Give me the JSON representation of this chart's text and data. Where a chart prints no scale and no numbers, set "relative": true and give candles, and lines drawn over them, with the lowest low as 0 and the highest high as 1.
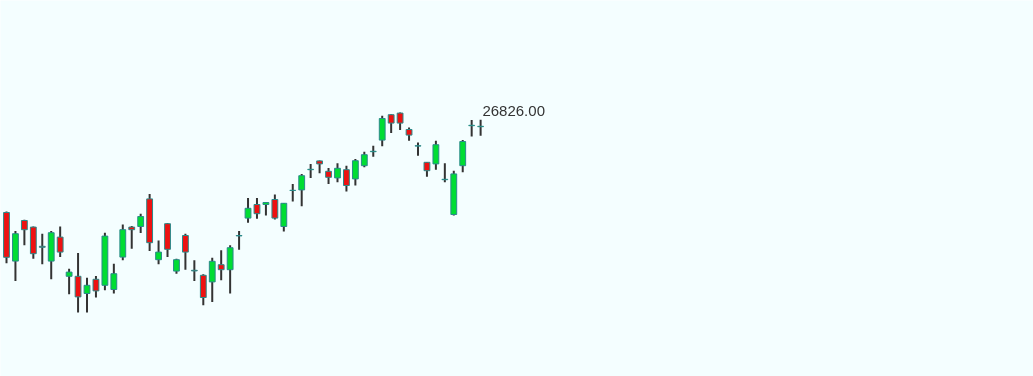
{
  "chart_data": {
    "type": "candlestick",
    "relative": true,
    "categories": [
      null,
      null,
      null,
      null,
      null,
      null,
      null,
      null,
      null,
      null,
      null,
      null,
      null,
      null,
      null,
      null,
      null,
      null,
      null,
      null,
      null,
      null,
      null,
      null,
      null,
      null,
      null,
      null,
      null,
      null,
      null,
      null,
      null,
      null,
      null,
      null,
      null,
      null,
      null,
      null,
      null,
      null,
      null,
      null,
      null,
      null,
      null,
      null,
      null,
      null,
      null,
      null,
      null,
      null
    ],
    "ohlc": [
      [
        0.5,
        0.505,
        0.246,
        0.276
      ],
      [
        0.257,
        0.407,
        0.158,
        0.394
      ],
      [
        0.46,
        0.464,
        0.336,
        0.414
      ],
      [
        0.427,
        0.43,
        0.269,
        0.294
      ],
      [
        0.331,
        0.394,
        0.241,
        0.326
      ],
      [
        0.257,
        0.407,
        0.166,
        0.399
      ],
      [
        0.377,
        0.43,
        0.277,
        0.302
      ],
      [
        0.181,
        0.219,
        0.091,
        0.202
      ],
      [
        0.181,
        0.297,
        0.0,
        0.078
      ],
      [
        0.095,
        0.174,
        0.0,
        0.136
      ],
      [
        0.166,
        0.182,
        0.075,
        0.108
      ],
      [
        0.136,
        0.399,
        0.111,
        0.382
      ],
      [
        0.115,
        0.244,
        0.095,
        0.194
      ],
      [
        0.277,
        0.44,
        0.261,
        0.414
      ],
      [
        0.427,
        0.432,
        0.319,
        0.414
      ],
      [
        0.43,
        0.494,
        0.397,
        0.48
      ],
      [
        0.568,
        0.593,
        0.307,
        0.349
      ],
      [
        0.264,
        0.36,
        0.241,
        0.302
      ],
      [
        0.444,
        0.447,
        0.277,
        0.316
      ],
      [
        0.207,
        0.269,
        0.194,
        0.264
      ],
      [
        0.385,
        0.394,
        0.214,
        0.302
      ],
      [
        0.211,
        0.261,
        0.158,
        0.208
      ],
      [
        0.186,
        0.191,
        0.036,
        0.075
      ],
      [
        0.153,
        0.274,
        0.053,
        0.256
      ],
      [
        0.239,
        0.311,
        0.161,
        0.214
      ],
      [
        0.214,
        0.336,
        0.095,
        0.324
      ],
      [
        0.385,
        0.407,
        0.314,
        0.383
      ],
      [
        0.472,
        0.573,
        0.449,
        0.521
      ],
      [
        0.54,
        0.573,
        0.469,
        0.494
      ],
      [
        0.54,
        0.551,
        0.485,
        0.55
      ],
      [
        0.565,
        0.59,
        0.465,
        0.472
      ],
      [
        0.43,
        0.548,
        0.405,
        0.546
      ],
      [
        0.61,
        0.643,
        0.555,
        0.611
      ],
      [
        0.613,
        0.693,
        0.531,
        0.684
      ],
      [
        0.714,
        0.743,
        0.673,
        0.716
      ],
      [
        0.758,
        0.76,
        0.696,
        0.743
      ],
      [
        0.706,
        0.722,
        0.643,
        0.676
      ],
      [
        0.673,
        0.746,
        0.651,
        0.721
      ],
      [
        0.714,
        0.734,
        0.605,
        0.635
      ],
      [
        0.668,
        0.768,
        0.635,
        0.759
      ],
      [
        0.734,
        0.804,
        0.726,
        0.789
      ],
      [
        0.804,
        0.834,
        0.779,
        0.806
      ],
      [
        0.862,
        0.984,
        0.831,
        0.97
      ],
      [
        0.989,
        0.991,
        0.897,
        0.947
      ],
      [
        0.997,
        1.0,
        0.912,
        0.947
      ],
      [
        0.915,
        0.925,
        0.859,
        0.887
      ],
      [
        0.834,
        0.85,
        0.784,
        0.832
      ],
      [
        0.751,
        0.753,
        0.679,
        0.709
      ],
      [
        0.743,
        0.859,
        0.714,
        0.839
      ],
      [
        0.664,
        0.746,
        0.651,
        0.666
      ],
      [
        0.49,
        0.709,
        0.485,
        0.693
      ],
      [
        0.734,
        0.862,
        0.701,
        0.855
      ],
      [
        0.934,
        0.962,
        0.88,
        0.936
      ],
      [
        0.929,
        0.964,
        0.884,
        0.931
      ]
    ],
    "colors": [
      "#ee1111",
      "#00dd33",
      "#ee1111",
      "#ee1111",
      "#ee1111",
      "#00dd33",
      "#ee1111",
      "#00dd33",
      "#ee1111",
      "#00dd33",
      "#ee1111",
      "#00dd33",
      "#00dd33",
      "#00dd33",
      "#ee1111",
      "#00dd33",
      "#ee1111",
      "#00dd33",
      "#ee1111",
      "#00dd33",
      "#ee1111",
      "#ee1111",
      "#ee1111",
      "#00dd33",
      "#ee1111",
      "#00dd33",
      "#ee1111",
      "#00dd33",
      "#ee1111",
      "#00dd33",
      "#ee1111",
      "#00dd33",
      "#00dd33",
      "#00dd33",
      "#00dd33",
      "#ee1111",
      "#ee1111",
      "#00dd33",
      "#ee1111",
      "#00dd33",
      "#00dd33",
      "#00dd33",
      "#00dd33",
      "#ee1111",
      "#ee1111",
      "#ee1111",
      "#ee1111",
      "#ee1111",
      "#00dd33",
      "#00dd33",
      "#00dd33",
      "#00dd33",
      "#00dd33",
      "#00dd33"
    ],
    "annotations": [
      "26826.00"
    ],
    "grid": false,
    "tick_labels": false
  }
}
